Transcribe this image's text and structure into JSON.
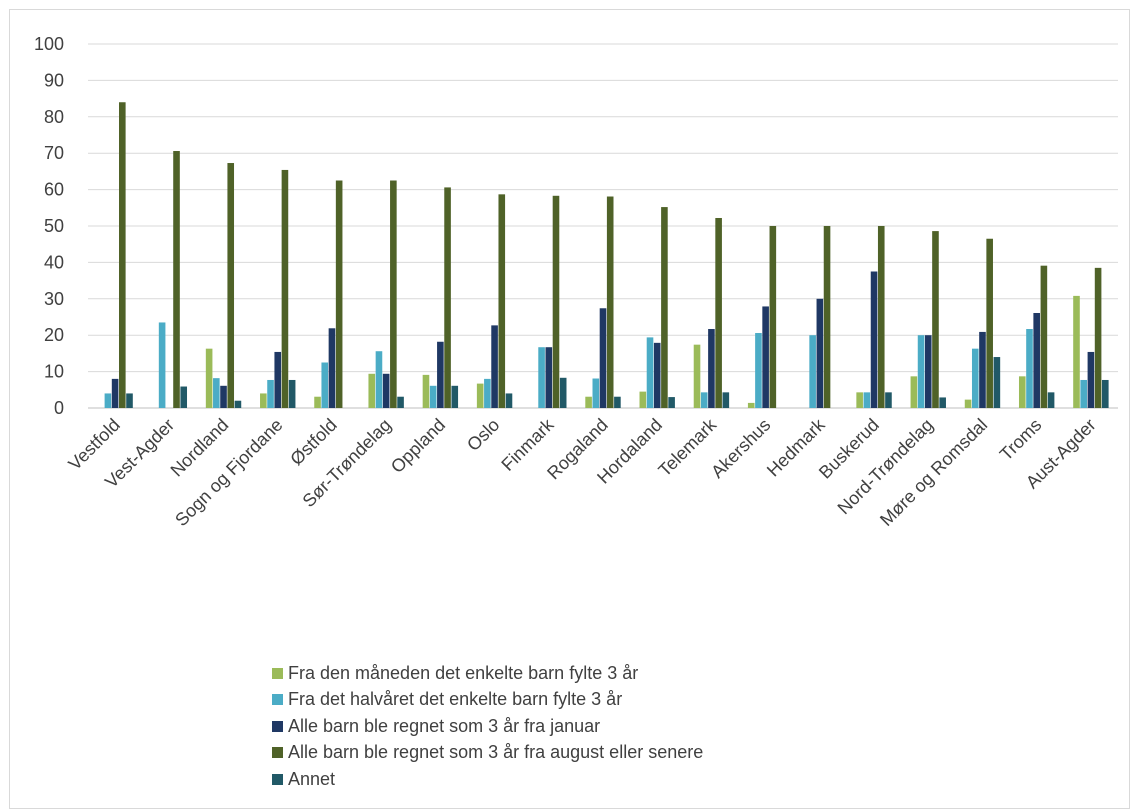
{
  "chart_data": {
    "type": "bar",
    "categories": [
      "Vestfold",
      "Vest-Agder",
      "Nordland",
      "Sogn og Fjordane",
      "Østfold",
      "Sør-Trøndelag",
      "Oppland",
      "Oslo",
      "Finmark",
      "Rogaland",
      "Hordaland",
      "Telemark",
      "Akershus",
      "Hedmark",
      "Buskerud",
      "Nord-Trøndelag",
      "Møre og Romsdal",
      "Troms",
      "Aust-Agder"
    ],
    "series": [
      {
        "name": "Fra den måneden det enkelte barn fylte 3 år",
        "color": "#9bbb59",
        "values": [
          0,
          0,
          16.3,
          4,
          3.1,
          9.4,
          9.1,
          6.7,
          0,
          3.1,
          4.5,
          17.4,
          1.4,
          0,
          4.3,
          8.7,
          2.3,
          8.7,
          30.8
        ]
      },
      {
        "name": "Fra det halvåret det enkelte barn fylte 3 år",
        "color": "#4bacc6",
        "values": [
          4,
          23.5,
          8.2,
          7.7,
          12.5,
          15.6,
          6.1,
          8,
          16.7,
          8.1,
          19.4,
          4.3,
          20.6,
          20,
          4.3,
          20,
          16.3,
          21.7,
          7.7
        ]
      },
      {
        "name": "Alle barn ble regnet som 3 år fra januar",
        "color": "#1f3864",
        "values": [
          8,
          0,
          6.1,
          15.4,
          21.9,
          9.4,
          18.2,
          22.7,
          16.7,
          27.4,
          17.9,
          21.7,
          27.9,
          30,
          37.5,
          20,
          20.9,
          26.1,
          15.4
        ]
      },
      {
        "name": "Alle barn ble regnet som 3 år fra august eller senere",
        "color": "#4f6228",
        "values": [
          84,
          70.6,
          67.3,
          65.4,
          62.5,
          62.5,
          60.6,
          58.7,
          58.3,
          58.1,
          55.2,
          52.2,
          50,
          50,
          50,
          48.6,
          46.5,
          39.1,
          38.5
        ]
      },
      {
        "name": "Annet",
        "color": "#215967",
        "values": [
          4,
          5.9,
          2,
          7.7,
          0,
          3.1,
          6.1,
          4,
          8.3,
          3.1,
          3,
          4.3,
          0,
          0,
          4.3,
          2.9,
          14,
          4.3,
          7.7
        ]
      }
    ],
    "yticks": [
      "0",
      "10",
      "20",
      "30",
      "40",
      "50",
      "60",
      "70",
      "80",
      "90",
      "100"
    ],
    "ylim": [
      0,
      100
    ],
    "grid": true,
    "legend": "bottom"
  }
}
